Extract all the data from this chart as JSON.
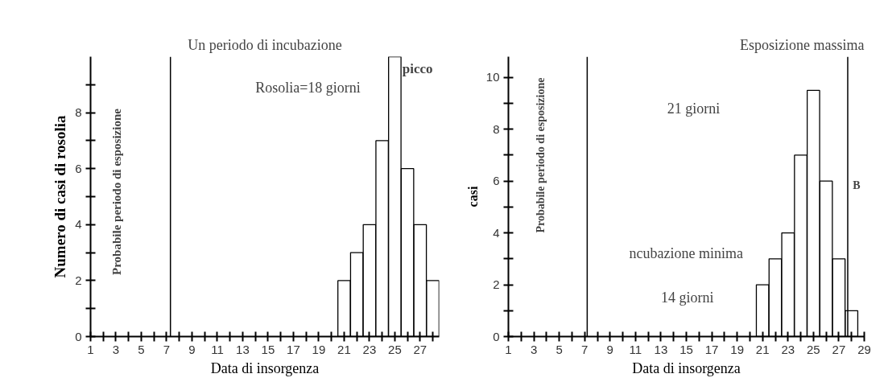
{
  "chart_data": [
    {
      "type": "bar",
      "title": "Un periodo di incubazione",
      "xlabel": "Data di insorgenza",
      "ylabel": "Numero di casi di rosolia",
      "color": "#ffffff",
      "x": [
        21,
        22,
        23,
        24,
        25,
        26,
        27,
        28
      ],
      "values": [
        2,
        3,
        4,
        7,
        10,
        6,
        4,
        2
      ],
      "xlim": [
        1,
        28.5
      ],
      "ylim": [
        0,
        10
      ],
      "xticks": [
        1,
        {
          "value": 2,
          "label": null
        },
        3,
        {
          "value": 4,
          "label": null
        },
        5,
        {
          "value": 6,
          "label": null
        },
        7,
        {
          "value": 8,
          "label": null
        },
        9,
        {
          "value": 10,
          "label": null
        },
        11,
        {
          "value": 12,
          "label": null
        },
        13,
        {
          "value": 14,
          "label": null
        },
        15,
        {
          "value": 16,
          "label": null
        },
        17,
        {
          "value": 18,
          "label": null
        },
        19,
        {
          "value": 20,
          "label": null
        },
        21,
        {
          "value": 22,
          "label": null
        },
        23,
        {
          "value": 24,
          "label": null
        },
        25,
        {
          "value": 26,
          "label": null
        },
        27,
        {
          "value": 28,
          "label": null
        }
      ],
      "yticks": [
        0,
        {
          "value": 1,
          "label": null
        },
        2,
        {
          "value": 3,
          "label": null
        },
        4,
        {
          "value": 5,
          "label": null
        },
        6,
        {
          "value": 7,
          "label": null
        },
        8,
        {
          "value": 9,
          "label": null
        }
      ],
      "ref_lines": [
        {
          "axis": "x",
          "value": 7.3
        }
      ],
      "annotations": [
        "picco",
        "Rosolia=18 giorni",
        "Probabile periodo di esposizione"
      ]
    },
    {
      "type": "bar",
      "title": "Esposizione massima",
      "xlabel": "Data di insorgenza",
      "ylabel": "casi",
      "color": "#ffffff",
      "x": [
        21,
        22,
        23,
        24,
        25,
        26,
        27,
        28
      ],
      "values": [
        2,
        3,
        4,
        7,
        9.5,
        6,
        3,
        1
      ],
      "xlim": [
        1,
        29
      ],
      "ylim": [
        0,
        10.8
      ],
      "xticks": [
        1,
        {
          "value": 2,
          "label": null
        },
        3,
        {
          "value": 4,
          "label": null
        },
        5,
        {
          "value": 6,
          "label": null
        },
        7,
        {
          "value": 8,
          "label": null
        },
        9,
        {
          "value": 10,
          "label": null
        },
        11,
        {
          "value": 12,
          "label": null
        },
        13,
        {
          "value": 14,
          "label": null
        },
        15,
        {
          "value": 16,
          "label": null
        },
        17,
        {
          "value": 18,
          "label": null
        },
        19,
        {
          "value": 20,
          "label": null
        },
        21,
        {
          "value": 22,
          "label": null
        },
        23,
        {
          "value": 24,
          "label": null
        },
        25,
        {
          "value": 26,
          "label": null
        },
        27,
        {
          "value": 28,
          "label": null
        },
        29
      ],
      "yticks": [
        0,
        {
          "value": 1,
          "label": null
        },
        2,
        {
          "value": 3,
          "label": null
        },
        4,
        {
          "value": 5,
          "label": null
        },
        6,
        {
          "value": 7,
          "label": null
        },
        8,
        {
          "value": 9,
          "label": null
        },
        10
      ],
      "ref_lines": [
        {
          "axis": "x",
          "value": 7.2
        },
        {
          "axis": "x",
          "value": 27.7
        }
      ],
      "annotations": [
        "21 giorni",
        "ncubazione minima",
        "14 giorni",
        "Probabile periodo di esposizione",
        "B"
      ]
    }
  ]
}
